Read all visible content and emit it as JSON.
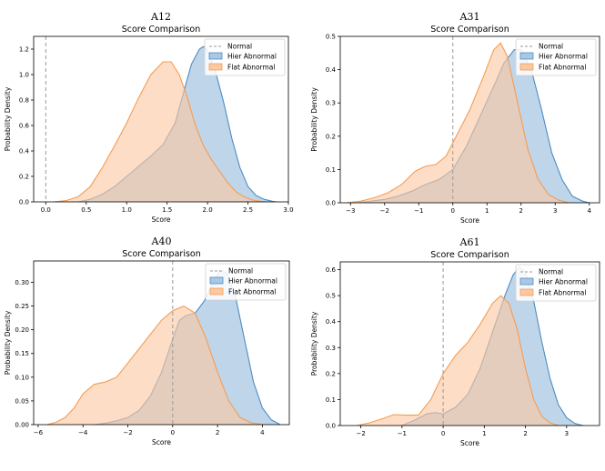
{
  "chart_data": [
    {
      "type": "area",
      "suptitle": "A12",
      "title": "Score Comparison",
      "xlabel": "Score",
      "ylabel": "Probability Density",
      "xlim": [
        -0.15,
        3.0
      ],
      "ylim": [
        0,
        1.3
      ],
      "xticks": [
        0.0,
        0.5,
        1.0,
        1.5,
        2.0,
        2.5,
        3.0
      ],
      "xtick_labels": [
        "0.0",
        "0.5",
        "1.0",
        "1.5",
        "2.0",
        "2.5",
        "3.0"
      ],
      "yticks": [
        0.0,
        0.2,
        0.4,
        0.6,
        0.8,
        1.0,
        1.2
      ],
      "ytick_labels": [
        "0.0",
        "0.2",
        "0.4",
        "0.6",
        "0.8",
        "1.0",
        "1.2"
      ],
      "normal_x": 0.0,
      "legend_position": "top-right",
      "legend": [
        "Normal",
        "Hier Abnormal",
        "Flat Abnormal"
      ],
      "series": [
        {
          "name": "Hier Abnormal",
          "x": [
            0.4,
            0.55,
            0.7,
            0.85,
            1.0,
            1.15,
            1.3,
            1.45,
            1.6,
            1.7,
            1.8,
            1.9,
            1.95,
            2.0,
            2.1,
            2.2,
            2.3,
            2.4,
            2.5,
            2.6,
            2.7,
            2.8,
            2.85
          ],
          "values": [
            0.0,
            0.02,
            0.06,
            0.12,
            0.2,
            0.28,
            0.36,
            0.45,
            0.62,
            0.85,
            1.08,
            1.2,
            1.22,
            1.19,
            1.02,
            0.78,
            0.5,
            0.27,
            0.12,
            0.05,
            0.02,
            0.005,
            0.0
          ]
        },
        {
          "name": "Flat Abnormal",
          "x": [
            0.1,
            0.25,
            0.4,
            0.55,
            0.7,
            0.85,
            1.0,
            1.15,
            1.3,
            1.45,
            1.55,
            1.65,
            1.75,
            1.85,
            1.95,
            2.05,
            2.15,
            2.25,
            2.35,
            2.45,
            2.55,
            2.65,
            2.75
          ],
          "values": [
            0.0,
            0.01,
            0.04,
            0.12,
            0.27,
            0.44,
            0.62,
            0.82,
            1.0,
            1.1,
            1.1,
            1.0,
            0.82,
            0.6,
            0.44,
            0.33,
            0.24,
            0.15,
            0.08,
            0.04,
            0.015,
            0.005,
            0.0
          ]
        }
      ]
    },
    {
      "type": "area",
      "suptitle": "A31",
      "title": "Score Comparison",
      "xlabel": "Score",
      "ylabel": "Probability Density",
      "xlim": [
        -3.3,
        4.3
      ],
      "ylim": [
        0,
        0.5
      ],
      "xticks": [
        -3,
        -2,
        -1,
        0,
        1,
        2,
        3,
        4
      ],
      "xtick_labels": [
        "−3",
        "−2",
        "−1",
        "0",
        "1",
        "2",
        "3",
        "4"
      ],
      "yticks": [
        0.0,
        0.1,
        0.2,
        0.3,
        0.4,
        0.5
      ],
      "ytick_labels": [
        "0.0",
        "0.1",
        "0.2",
        "0.3",
        "0.4",
        "0.5"
      ],
      "normal_x": 0.0,
      "legend_position": "top-right",
      "legend": [
        "Normal",
        "Hier Abnormal",
        "Flat Abnormal"
      ],
      "series": [
        {
          "name": "Hier Abnormal",
          "x": [
            -2.8,
            -2.4,
            -2.0,
            -1.6,
            -1.2,
            -0.8,
            -0.4,
            0.0,
            0.4,
            0.8,
            1.2,
            1.5,
            1.8,
            2.0,
            2.3,
            2.6,
            2.9,
            3.2,
            3.5,
            3.8,
            4.0
          ],
          "values": [
            0.0,
            0.005,
            0.01,
            0.02,
            0.035,
            0.055,
            0.07,
            0.1,
            0.17,
            0.26,
            0.35,
            0.42,
            0.46,
            0.46,
            0.4,
            0.28,
            0.15,
            0.07,
            0.02,
            0.005,
            0.0
          ]
        },
        {
          "name": "Flat Abnormal",
          "x": [
            -3.1,
            -2.7,
            -2.3,
            -1.9,
            -1.5,
            -1.1,
            -0.8,
            -0.5,
            -0.2,
            0.1,
            0.5,
            0.9,
            1.2,
            1.4,
            1.6,
            1.9,
            2.2,
            2.5,
            2.8,
            3.1,
            3.4
          ],
          "values": [
            0.0,
            0.005,
            0.015,
            0.03,
            0.055,
            0.095,
            0.11,
            0.115,
            0.14,
            0.2,
            0.28,
            0.38,
            0.46,
            0.48,
            0.44,
            0.3,
            0.16,
            0.07,
            0.025,
            0.008,
            0.0
          ]
        }
      ]
    },
    {
      "type": "area",
      "suptitle": "A40",
      "title": "Score Comparison",
      "xlabel": "Score",
      "ylabel": "Probability Density",
      "xlim": [
        -6.2,
        5.2
      ],
      "ylim": [
        0,
        0.345
      ],
      "xticks": [
        -6,
        -4,
        -2,
        0,
        2,
        4
      ],
      "xtick_labels": [
        "−6",
        "−4",
        "−2",
        "0",
        "2",
        "4"
      ],
      "yticks": [
        0.0,
        0.05,
        0.1,
        0.15,
        0.2,
        0.25,
        0.3
      ],
      "ytick_labels": [
        "0.00",
        "0.05",
        "0.10",
        "0.15",
        "0.20",
        "0.25",
        "0.30"
      ],
      "normal_x": 0.0,
      "legend_position": "top-right",
      "legend": [
        "Normal",
        "Hier Abnormal",
        "Flat Abnormal"
      ],
      "series": [
        {
          "name": "Hier Abnormal",
          "x": [
            -3.5,
            -3.0,
            -2.5,
            -2.0,
            -1.5,
            -1.0,
            -0.5,
            0.0,
            0.3,
            0.6,
            1.0,
            1.4,
            1.8,
            2.1,
            2.4,
            2.8,
            3.2,
            3.6,
            4.0,
            4.4,
            4.8
          ],
          "values": [
            0.0,
            0.003,
            0.008,
            0.015,
            0.03,
            0.06,
            0.11,
            0.18,
            0.22,
            0.23,
            0.235,
            0.26,
            0.3,
            0.325,
            0.32,
            0.27,
            0.18,
            0.09,
            0.035,
            0.01,
            0.0
          ]
        },
        {
          "name": "Flat Abnormal",
          "x": [
            -5.6,
            -5.2,
            -4.8,
            -4.4,
            -4.0,
            -3.5,
            -3.0,
            -2.5,
            -2.0,
            -1.5,
            -1.0,
            -0.5,
            0.0,
            0.5,
            1.0,
            1.5,
            2.0,
            2.5,
            3.0,
            3.5,
            4.0
          ],
          "values": [
            0.0,
            0.005,
            0.015,
            0.035,
            0.065,
            0.085,
            0.09,
            0.1,
            0.13,
            0.16,
            0.19,
            0.22,
            0.24,
            0.25,
            0.235,
            0.18,
            0.11,
            0.05,
            0.015,
            0.004,
            0.0
          ]
        }
      ]
    },
    {
      "type": "area",
      "suptitle": "A61",
      "title": "Score Comparison",
      "xlabel": "Score",
      "ylabel": "Probability Density",
      "xlim": [
        -2.5,
        3.8
      ],
      "ylim": [
        0,
        0.63
      ],
      "xticks": [
        -2,
        -1,
        0,
        1,
        2,
        3
      ],
      "xtick_labels": [
        "−2",
        "−1",
        "0",
        "1",
        "2",
        "3"
      ],
      "yticks": [
        0.0,
        0.1,
        0.2,
        0.3,
        0.4,
        0.5,
        0.6
      ],
      "ytick_labels": [
        "0.0",
        "0.1",
        "0.2",
        "0.3",
        "0.4",
        "0.5",
        "0.6"
      ],
      "normal_x": 0.0,
      "legend_position": "top-right",
      "legend": [
        "Normal",
        "Hier Abnormal",
        "Flat Abnormal"
      ],
      "series": [
        {
          "name": "Hier Abnormal",
          "x": [
            -1.0,
            -0.7,
            -0.4,
            -0.2,
            0.0,
            0.3,
            0.6,
            0.9,
            1.2,
            1.5,
            1.7,
            1.85,
            2.0,
            2.2,
            2.4,
            2.6,
            2.8,
            3.0,
            3.2,
            3.4
          ],
          "values": [
            0.0,
            0.02,
            0.045,
            0.05,
            0.045,
            0.07,
            0.12,
            0.22,
            0.36,
            0.5,
            0.58,
            0.61,
            0.59,
            0.48,
            0.32,
            0.18,
            0.08,
            0.03,
            0.008,
            0.0
          ]
        },
        {
          "name": "Flat Abnormal",
          "x": [
            -2.1,
            -1.8,
            -1.5,
            -1.2,
            -0.9,
            -0.6,
            -0.3,
            0.0,
            0.3,
            0.6,
            0.9,
            1.2,
            1.4,
            1.6,
            1.8,
            2.0,
            2.2,
            2.4,
            2.6,
            2.8
          ],
          "values": [
            0.0,
            0.01,
            0.025,
            0.042,
            0.04,
            0.04,
            0.1,
            0.2,
            0.27,
            0.32,
            0.39,
            0.47,
            0.5,
            0.47,
            0.37,
            0.22,
            0.1,
            0.035,
            0.01,
            0.0
          ]
        }
      ]
    }
  ],
  "colors": {
    "hier_fill": "#a9c8e3",
    "hier_line": "#4f8cc0",
    "flat_fill": "#fbc8a2",
    "flat_line": "#f59c52",
    "normal_line": "#999999"
  }
}
